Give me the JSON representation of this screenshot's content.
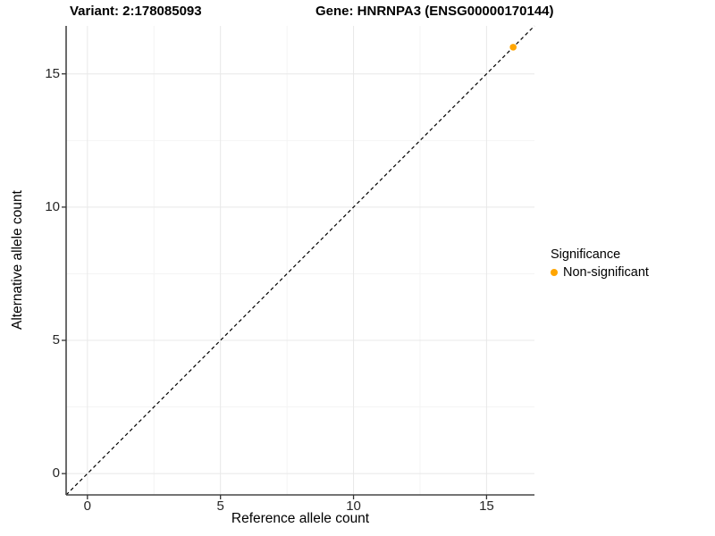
{
  "header": {
    "title_left": "Variant: 2:178085093",
    "title_right": "Gene: HNRNPA3 (ENSG00000170144)"
  },
  "chart_data": {
    "type": "scatter",
    "xlabel": "Reference allele count",
    "ylabel": "Alternative allele count",
    "xlim": [
      -0.8,
      16.8
    ],
    "ylim": [
      -0.8,
      16.8
    ],
    "x_ticks": [
      0,
      5,
      10,
      15
    ],
    "y_ticks": [
      0,
      5,
      10,
      15
    ],
    "x_minor_ticks": [
      2.5,
      7.5,
      12.5
    ],
    "y_minor_ticks": [
      2.5,
      7.5,
      12.5
    ],
    "grid": true,
    "identity_line": {
      "style": "dashed",
      "color": "#000000",
      "equation": "y = x"
    },
    "series": [
      {
        "name": "Non-significant",
        "color": "#FFA500",
        "points": [
          {
            "x": 16,
            "y": 16
          }
        ]
      }
    ],
    "legend_position": "right"
  },
  "legend": {
    "title": "Significance",
    "items": [
      {
        "label": "Non-significant",
        "color": "#FFA500"
      }
    ]
  },
  "style": {
    "axis_line_color": "#464646",
    "tick_color": "#333333",
    "major_grid_color": "#E8E8E8",
    "minor_grid_color": "#F3F3F3",
    "background": "#FFFFFF"
  }
}
